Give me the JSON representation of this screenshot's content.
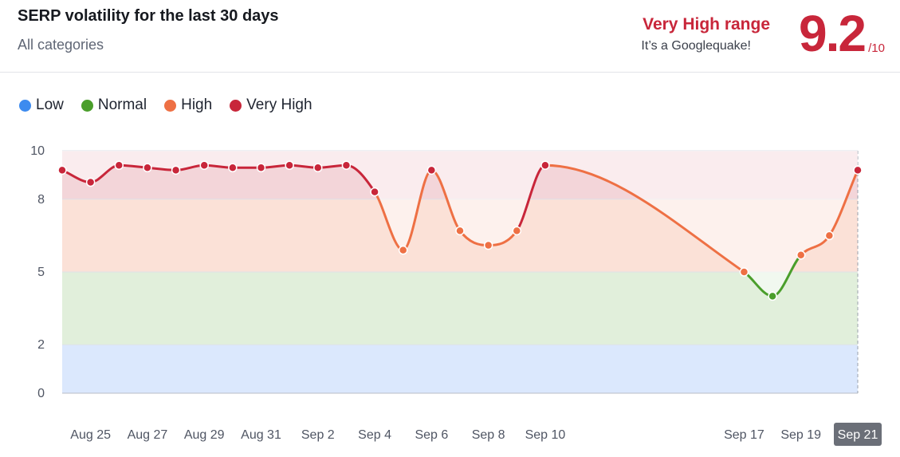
{
  "header": {
    "title": "SERP volatility for the last 30 days",
    "subtitle": "All categories",
    "range_label": "Very High range",
    "range_note": "It’s a Googlequake!",
    "score": "9.2",
    "score_max": "/10"
  },
  "legend": [
    {
      "label": "Low",
      "color": "#3d8bef"
    },
    {
      "label": "Normal",
      "color": "#4a9e2b"
    },
    {
      "label": "High",
      "color": "#ee7044"
    },
    {
      "label": "Very High",
      "color": "#c8263a"
    }
  ],
  "colors": {
    "low": "#3d8bef",
    "normal": "#4a9e2b",
    "high": "#ee7044",
    "very_high": "#c8263a",
    "band_low": "#dbe8fd",
    "band_normal": "#e1efdb",
    "band_high": "#fbe1d7",
    "band_very_high": "#f3d5d9",
    "highlight_tick_bg": "#6b6f78"
  },
  "chart_data": {
    "type": "line",
    "title": "SERP volatility for the last 30 days",
    "xlabel": "",
    "ylabel": "",
    "ylim": [
      0,
      10
    ],
    "y_ticks": [
      0,
      2,
      5,
      8,
      10
    ],
    "y_bands": [
      {
        "name": "Low",
        "from": 0,
        "to": 2
      },
      {
        "name": "Normal",
        "from": 2,
        "to": 5
      },
      {
        "name": "High",
        "from": 5,
        "to": 8
      },
      {
        "name": "Very High",
        "from": 8,
        "to": 10
      }
    ],
    "x_range": [
      "Aug 24",
      "Sep 21"
    ],
    "x_ticks": [
      "Aug 25",
      "Aug 27",
      "Aug 29",
      "Aug 31",
      "Sep 2",
      "Sep 4",
      "Sep 6",
      "Sep 8",
      "Sep 10",
      "Sep 17",
      "Sep 19",
      "Sep 21"
    ],
    "x_tick_days": [
      1,
      3,
      5,
      7,
      9,
      11,
      13,
      15,
      17,
      24,
      26,
      28
    ],
    "highlighted_tick": "Sep 21",
    "grid": "horizontal",
    "legend_position": "top-left",
    "series": [
      {
        "dates": [
          "Aug 24",
          "Aug 25",
          "Aug 26",
          "Aug 27",
          "Aug 28",
          "Aug 29",
          "Aug 30",
          "Aug 31",
          "Sep 1",
          "Sep 2",
          "Sep 3",
          "Sep 4",
          "Sep 5",
          "Sep 6",
          "Sep 7",
          "Sep 8",
          "Sep 9",
          "Sep 10",
          "Sep 17",
          "Sep 18",
          "Sep 19",
          "Sep 20",
          "Sep 21"
        ],
        "days": [
          0,
          1,
          2,
          3,
          4,
          5,
          6,
          7,
          8,
          9,
          10,
          11,
          12,
          13,
          14,
          15,
          16,
          17,
          24,
          25,
          26,
          27,
          28
        ],
        "values": [
          9.2,
          8.7,
          9.4,
          9.3,
          9.2,
          9.4,
          9.3,
          9.3,
          9.4,
          9.3,
          9.4,
          8.3,
          5.9,
          9.2,
          6.7,
          6.1,
          6.7,
          9.4,
          5.0,
          4.0,
          5.7,
          6.5,
          9.2
        ]
      }
    ]
  }
}
